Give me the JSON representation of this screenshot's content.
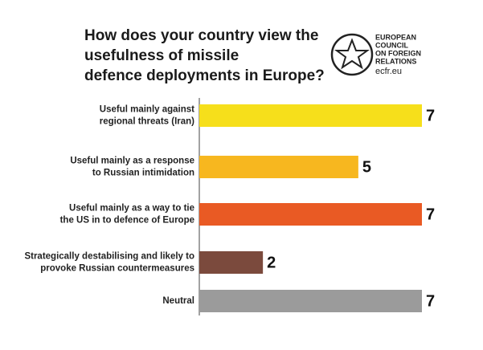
{
  "chart_data": {
    "type": "barh",
    "title": [
      "How does your country view the",
      "usefulness of missile",
      "defence deployments in Europe?"
    ],
    "logo": [
      "EUROPEAN",
      "COUNCIL",
      "ON FOREIGN",
      "RELATIONS",
      "ecfr.eu"
    ],
    "categories": [
      [
        "Useful mainly against",
        "regional threats (Iran)"
      ],
      [
        "Useful mainly as a response",
        "to Russian intimidation"
      ],
      [
        "Useful mainly as a way to tie",
        "the US in to defence of Europe"
      ],
      [
        "Strategically destabilising and likely to",
        "provoke Russian countermeasures"
      ],
      [
        "Neutral"
      ]
    ],
    "values": [
      7,
      5,
      7,
      2,
      7
    ],
    "colors": [
      "#f6df1b",
      "#f7b71f",
      "#e95a24",
      "#7b4a3d",
      "#9b9b9b"
    ],
    "xlim": [
      0,
      7
    ]
  }
}
